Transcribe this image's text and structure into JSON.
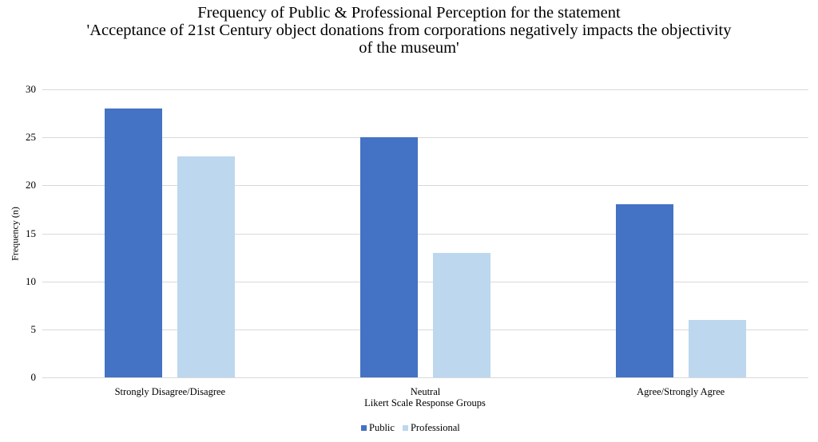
{
  "chart_data": {
    "type": "bar",
    "title": "Frequency of Public & Professional Perception for the statement 'Acceptance of 21st Century object donations from corporations negatively impacts the objectivity of the museum'",
    "title_lines": [
      "Frequency of Public & Professional Perception for the statement",
      "'Acceptance of 21st Century object donations from corporations negatively impacts the objectivity",
      "of the museum'"
    ],
    "xlabel": "Likert Scale Response Groups",
    "ylabel": "Frequency (n)",
    "categories": [
      "Strongly Disagree/Disagree",
      "Neutral",
      "Agree/Strongly Agree"
    ],
    "series": [
      {
        "name": "Public",
        "color": "#4472C4",
        "values": [
          28,
          25,
          18
        ]
      },
      {
        "name": "Professional",
        "color": "#BDD7EE",
        "values": [
          23,
          13,
          6
        ]
      }
    ],
    "ylim": [
      0,
      30
    ],
    "yticks": [
      "0",
      "5",
      "10",
      "15",
      "20",
      "25",
      "30"
    ],
    "grid": true,
    "legend_position": "bottom"
  }
}
